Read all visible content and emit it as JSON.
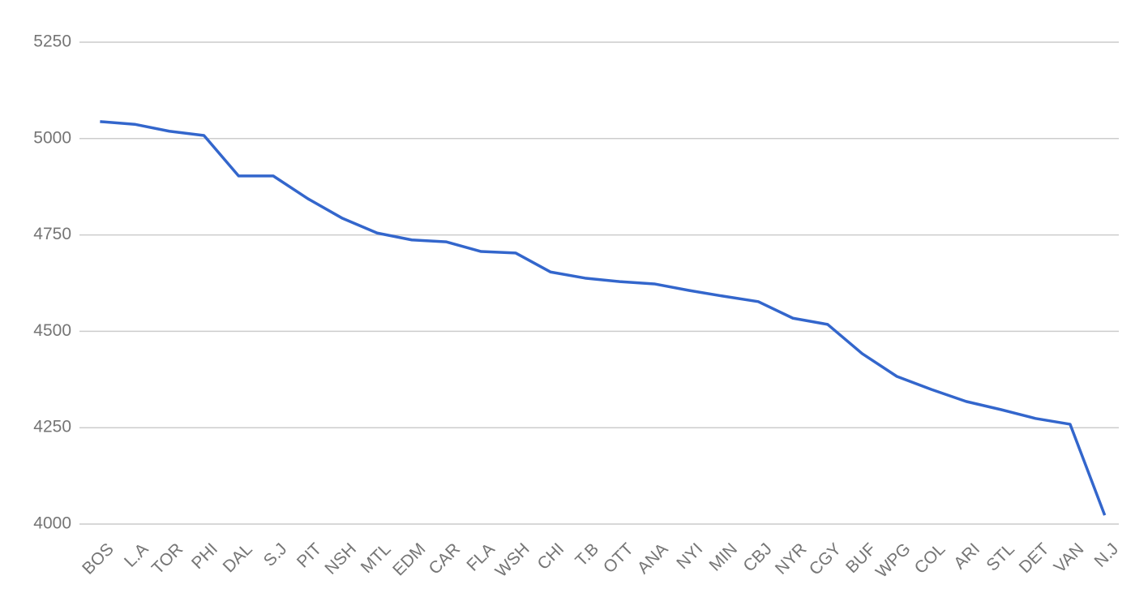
{
  "chart_data": {
    "type": "line",
    "categories": [
      "BOS",
      "L.A",
      "TOR",
      "PHI",
      "DAL",
      "S.J",
      "PIT",
      "NSH",
      "MTL",
      "EDM",
      "CAR",
      "FLA",
      "WSH",
      "CHI",
      "T.B",
      "OTT",
      "ANA",
      "NYI",
      "MIN",
      "CBJ",
      "NYR",
      "CGY",
      "BUF",
      "WPG",
      "COL",
      "ARI",
      "STL",
      "DET",
      "VAN",
      "N.J"
    ],
    "series": [
      {
        "color": "#3366cc",
        "values": [
          5044,
          5037,
          5019,
          5008,
          4903,
          4903,
          4844,
          4793,
          4755,
          4737,
          4732,
          4707,
          4703,
          4654,
          4638,
          4629,
          4623,
          4606,
          4591,
          4577,
          4534,
          4518,
          4442,
          4383,
          4349,
          4318,
          4297,
          4274,
          4259,
          4023
        ]
      }
    ],
    "ylim": [
      4000,
      5250
    ],
    "yticks": [
      4000,
      4250,
      4500,
      4750,
      5000,
      5250
    ],
    "grid": true
  }
}
